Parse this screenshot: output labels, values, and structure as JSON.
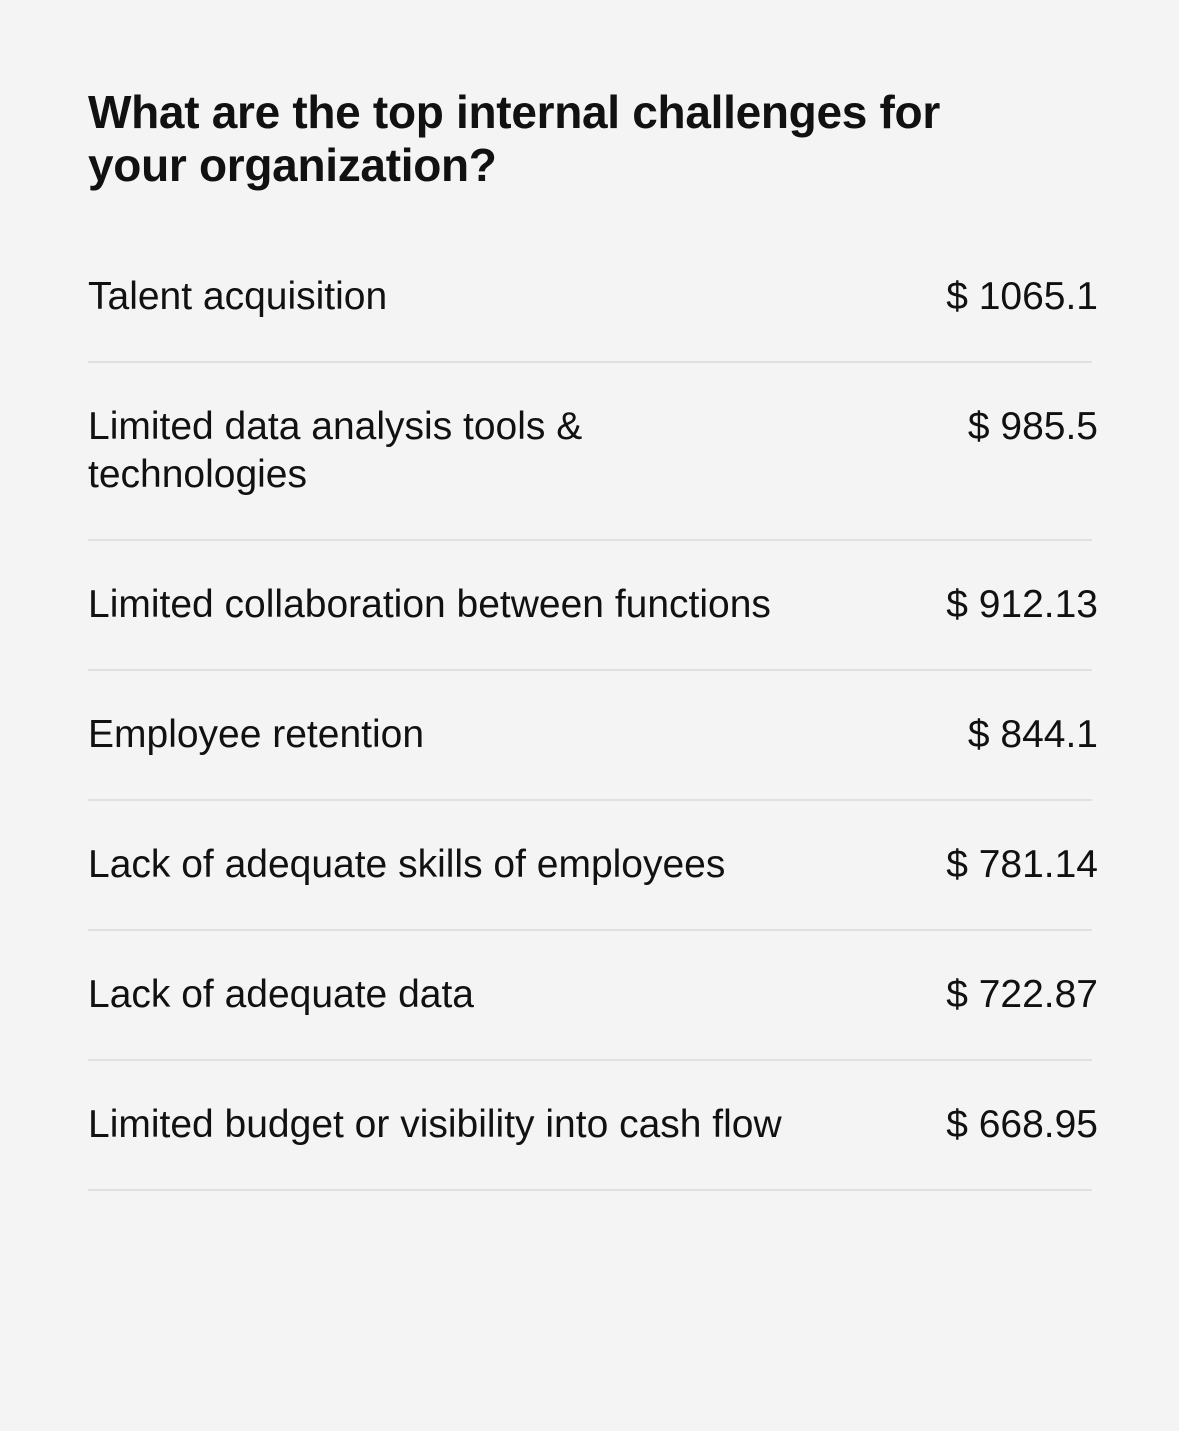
{
  "title": "What are the top internal challenges for your organization?",
  "rows": [
    {
      "label": "Talent acquisition",
      "value": "$ 1065.1"
    },
    {
      "label": "Limited data analysis tools & technologies",
      "value": "$ 985.5"
    },
    {
      "label": "Limited collaboration between functions",
      "value": "$ 912.13"
    },
    {
      "label": "Employee retention",
      "value": "$ 844.1"
    },
    {
      "label": "Lack of adequate skills of employees",
      "value": "$ 781.14"
    },
    {
      "label": "Lack of adequate data",
      "value": "$ 722.87"
    },
    {
      "label": "Limited budget or visibility into cash flow",
      "value": "$ 668.95"
    }
  ],
  "colors": {
    "background": "#f4f4f4",
    "divider": "#e0e0e0",
    "text": "#111111"
  }
}
